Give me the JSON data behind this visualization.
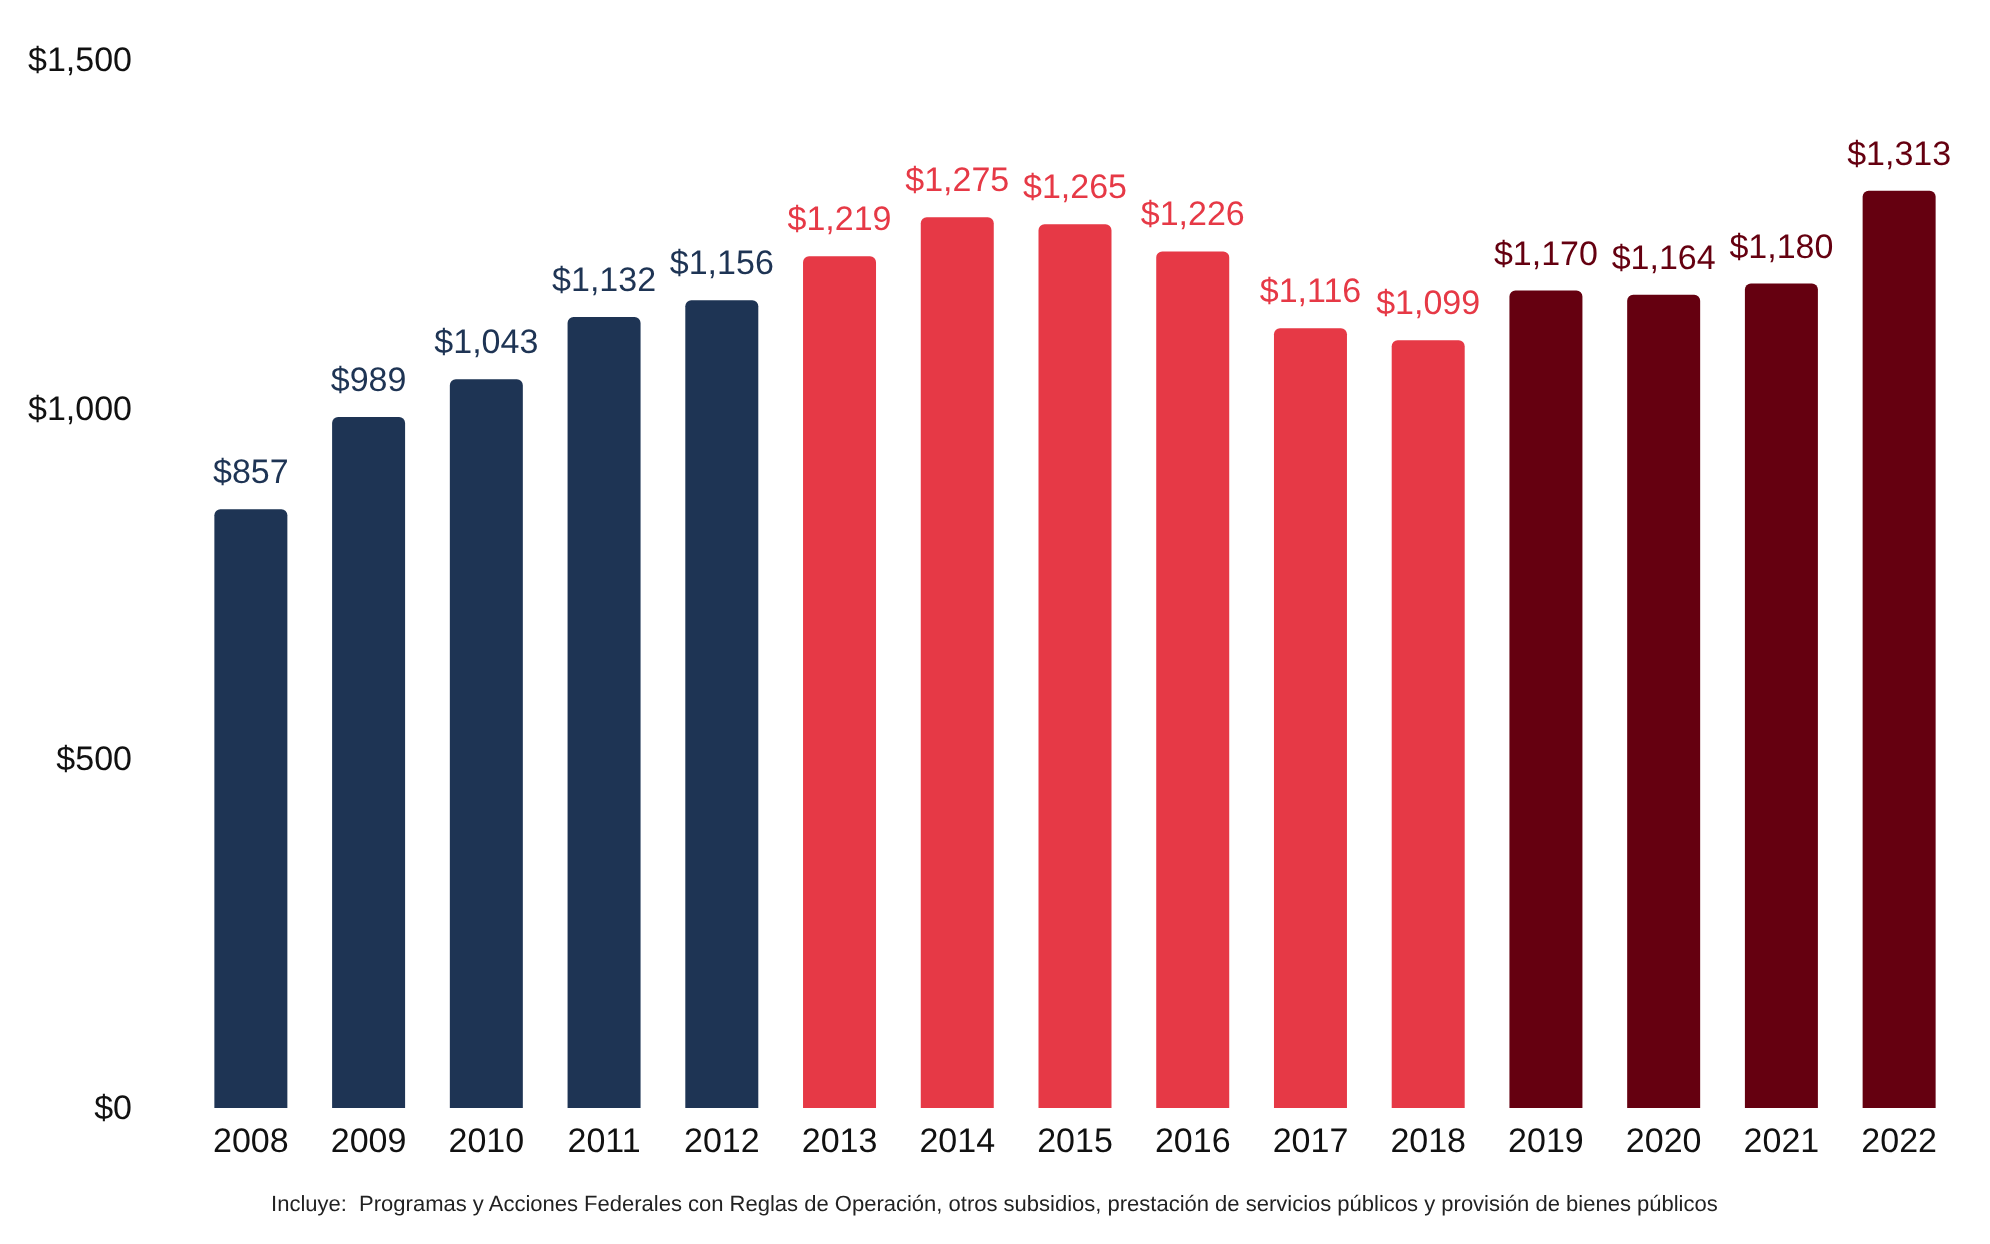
{
  "chart_data": {
    "type": "bar",
    "categories": [
      "2008",
      "2009",
      "2010",
      "2011",
      "2012",
      "2013",
      "2014",
      "2015",
      "2016",
      "2017",
      "2018",
      "2019",
      "2020",
      "2021",
      "2022"
    ],
    "values": [
      857,
      989,
      1043,
      1132,
      1156,
      1219,
      1275,
      1265,
      1226,
      1116,
      1099,
      1170,
      1164,
      1180,
      1313
    ],
    "value_labels": [
      "$857",
      "$989",
      "$1,043",
      "$1,132",
      "$1,156",
      "$1,219",
      "$1,275",
      "$1,265",
      "$1,226",
      "$1,116",
      "$1,099",
      "$1,170",
      "$1,164",
      "$1,180",
      "$1,313"
    ],
    "colors": [
      "#1e3454",
      "#1e3454",
      "#1e3454",
      "#1e3454",
      "#1e3454",
      "#e63946",
      "#e63946",
      "#e63946",
      "#e63946",
      "#e63946",
      "#e63946",
      "#650010",
      "#650010",
      "#650010",
      "#650010"
    ],
    "ylim": [
      0,
      1500
    ],
    "yticks": [
      {
        "value": 0,
        "label": "$0"
      },
      {
        "value": 500,
        "label": "$500"
      },
      {
        "value": 1000,
        "label": "$1,000"
      },
      {
        "value": 1500,
        "label": "$1,500"
      }
    ],
    "grid": false,
    "annotations": [
      "Incluye:  Programas y Acciones Federales con Reglas de Operación, otros subsidios, prestación de servicios públicos y provisión de bienes públicos"
    ]
  }
}
